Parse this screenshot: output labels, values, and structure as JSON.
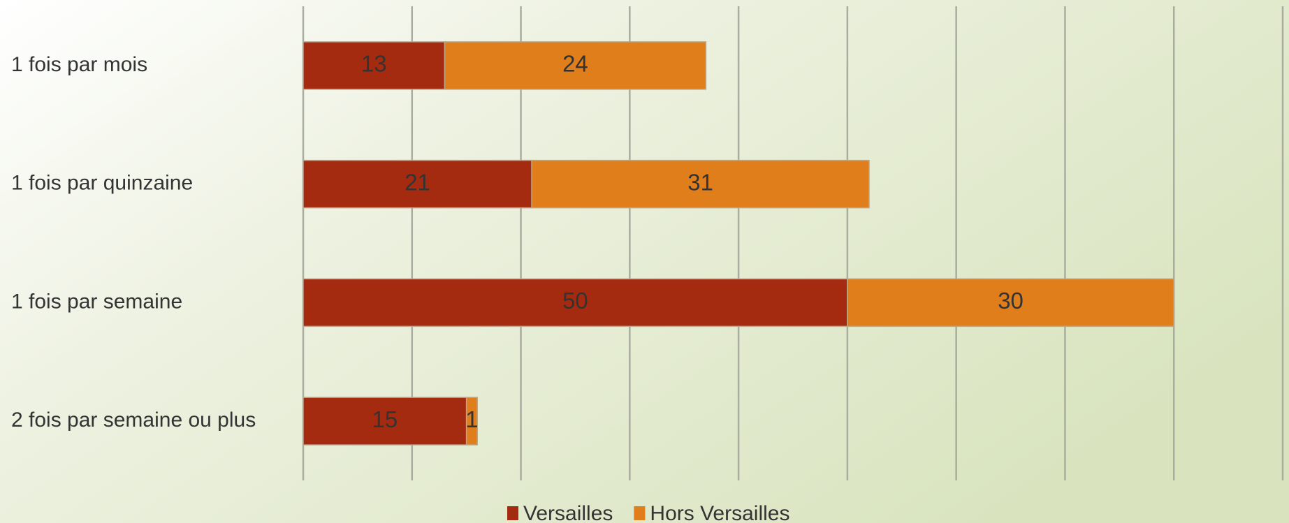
{
  "chart_data": {
    "type": "stacked-bar-horizontal",
    "categories": [
      "1 fois par mois",
      "1 fois par quinzaine",
      "1 fois par semaine",
      "2 fois par semaine ou plus"
    ],
    "series": [
      {
        "name": "Versailles",
        "color": "#a52b10",
        "values": [
          13,
          21,
          50,
          15
        ]
      },
      {
        "name": "Hors Versailles",
        "color": "#df7e1b",
        "values": [
          24,
          31,
          30,
          1
        ]
      }
    ],
    "xlim": [
      0,
      90
    ],
    "xticks": [
      0,
      10,
      20,
      30,
      40,
      50,
      60,
      70,
      80,
      90
    ],
    "grid": true,
    "legend": "bottom"
  }
}
